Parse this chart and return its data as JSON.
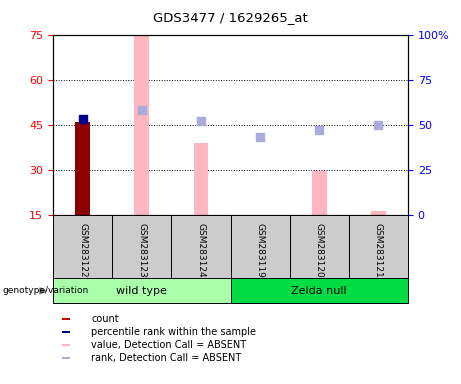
{
  "title": "GDS3477 / 1629265_at",
  "samples": [
    "GSM283122",
    "GSM283123",
    "GSM283124",
    "GSM283119",
    "GSM283120",
    "GSM283121"
  ],
  "ylim_left": [
    15,
    75
  ],
  "ylim_right": [
    0,
    100
  ],
  "yticks_left": [
    15,
    30,
    45,
    60,
    75
  ],
  "yticks_right": [
    0,
    25,
    50,
    75,
    100
  ],
  "bar_color_dark": "#8B0000",
  "bar_color_absent": "#FFB6C1",
  "dot_dark_color": "#00008B",
  "dot_absent_color": "#AAAADD",
  "dark_bar": {
    "GSM283122": 46.0
  },
  "absent_bars": {
    "GSM283123": 74.5,
    "GSM283124": 39.0,
    "GSM283120": 29.5,
    "GSM283121": 16.5
  },
  "dark_dot": {
    "GSM283122": 53
  },
  "absent_rank_dots": {
    "GSM283123": 58,
    "GSM283124": 52,
    "GSM283119": 43,
    "GSM283120": 47,
    "GSM283121": 50
  },
  "legend_items": [
    {
      "label": "count",
      "color": "#CC0000"
    },
    {
      "label": "percentile rank within the sample",
      "color": "#000099"
    },
    {
      "label": "value, Detection Call = ABSENT",
      "color": "#FFB6C1"
    },
    {
      "label": "rank, Detection Call = ABSENT",
      "color": "#AAAADD"
    }
  ],
  "group_label": "genotype/variation",
  "bar_width": 0.25,
  "dot_size": 40,
  "wild_type_color": "#AAFFAA",
  "zelda_null_color": "#00DD44",
  "sample_bg_color": "#CCCCCC"
}
